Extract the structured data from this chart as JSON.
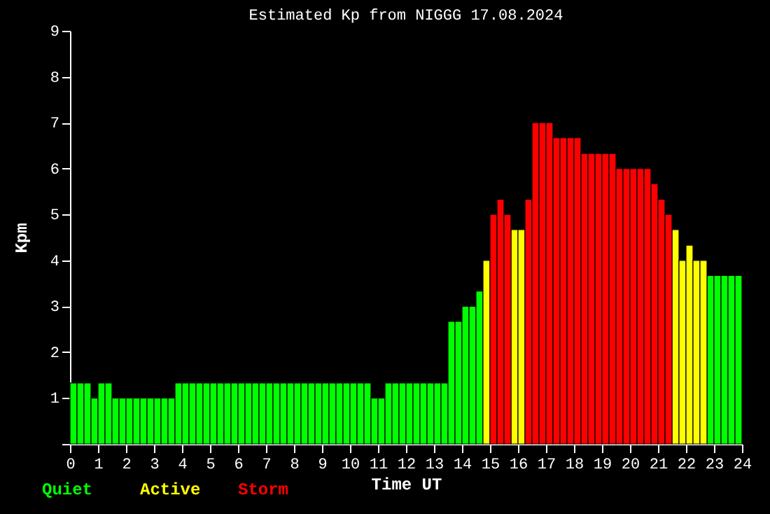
{
  "chart_data": {
    "type": "bar",
    "title": "Estimated Kp from NIGGG 17.08.2024",
    "xlabel": "Time UT",
    "ylabel": "Kpm",
    "x": [
      0.125,
      0.375,
      0.625,
      0.875,
      1.125,
      1.375,
      1.625,
      1.875,
      2.125,
      2.375,
      2.625,
      2.875,
      3.125,
      3.375,
      3.625,
      3.875,
      4.125,
      4.375,
      4.625,
      4.875,
      5.125,
      5.375,
      5.625,
      5.875,
      6.125,
      6.375,
      6.625,
      6.875,
      7.125,
      7.375,
      7.625,
      7.875,
      8.125,
      8.375,
      8.625,
      8.875,
      9.125,
      9.375,
      9.625,
      9.875,
      10.125,
      10.375,
      10.625,
      10.875,
      11.125,
      11.375,
      11.625,
      11.875,
      12.125,
      12.375,
      12.625,
      12.875,
      13.125,
      13.375,
      13.625,
      13.875,
      14.125,
      14.375,
      14.625,
      14.875,
      15.125,
      15.375,
      15.625,
      15.875,
      16.125,
      16.375,
      16.625,
      16.875,
      17.125,
      17.375,
      17.625,
      17.875,
      18.125,
      18.375,
      18.625,
      18.875,
      19.125,
      19.375,
      19.625,
      19.875,
      20.125,
      20.375,
      20.625,
      20.875,
      21.125,
      21.375,
      21.625,
      21.875,
      22.125,
      22.375,
      22.625,
      22.875,
      23.125,
      23.375,
      23.625,
      23.875
    ],
    "series": [
      {
        "name": "Quiet",
        "color": "#00ff00",
        "values": [
          1.33,
          1.33,
          1.33,
          1,
          1.33,
          1.33,
          1,
          1,
          1,
          1,
          1,
          1,
          1,
          1,
          1,
          1.33,
          1.33,
          1.33,
          1.33,
          1.33,
          1.33,
          1.33,
          1.33,
          1.33,
          1.33,
          1.33,
          1.33,
          1.33,
          1.33,
          1.33,
          1.33,
          1.33,
          1.33,
          1.33,
          1.33,
          1.33,
          1.33,
          1.33,
          1.33,
          1.33,
          1.33,
          1.33,
          1.33,
          1,
          1,
          1.33,
          1.33,
          1.33,
          1.33,
          1.33,
          1.33,
          1.33,
          1.33,
          1.33,
          2.67,
          2.67,
          3,
          3,
          3.33,
          null,
          null,
          null,
          null,
          null,
          null,
          null,
          null,
          null,
          null,
          null,
          null,
          null,
          null,
          null,
          null,
          null,
          null,
          null,
          null,
          null,
          null,
          null,
          null,
          null,
          null,
          null,
          null,
          null,
          null,
          null,
          null,
          3.67,
          3.67,
          3.67,
          3.67,
          3.67
        ]
      },
      {
        "name": "Active",
        "color": "#ffff00",
        "values": [
          null,
          null,
          null,
          null,
          null,
          null,
          null,
          null,
          null,
          null,
          null,
          null,
          null,
          null,
          null,
          null,
          null,
          null,
          null,
          null,
          null,
          null,
          null,
          null,
          null,
          null,
          null,
          null,
          null,
          null,
          null,
          null,
          null,
          null,
          null,
          null,
          null,
          null,
          null,
          null,
          null,
          null,
          null,
          null,
          null,
          null,
          null,
          null,
          null,
          null,
          null,
          null,
          null,
          null,
          null,
          null,
          null,
          null,
          null,
          4,
          null,
          null,
          null,
          4.67,
          4.67,
          null,
          null,
          null,
          null,
          null,
          null,
          null,
          null,
          null,
          null,
          null,
          null,
          null,
          null,
          null,
          null,
          null,
          null,
          null,
          null,
          null,
          4.67,
          4,
          4.33,
          4,
          4,
          null,
          null,
          null,
          null,
          null
        ]
      },
      {
        "name": "Storm",
        "color": "#ff0000",
        "values": [
          null,
          null,
          null,
          null,
          null,
          null,
          null,
          null,
          null,
          null,
          null,
          null,
          null,
          null,
          null,
          null,
          null,
          null,
          null,
          null,
          null,
          null,
          null,
          null,
          null,
          null,
          null,
          null,
          null,
          null,
          null,
          null,
          null,
          null,
          null,
          null,
          null,
          null,
          null,
          null,
          null,
          null,
          null,
          null,
          null,
          null,
          null,
          null,
          null,
          null,
          null,
          null,
          null,
          null,
          null,
          null,
          null,
          null,
          null,
          null,
          5,
          5.33,
          5,
          null,
          null,
          5.33,
          7,
          7,
          7,
          6.67,
          6.67,
          6.67,
          6.67,
          6.33,
          6.33,
          6.33,
          6.33,
          6.33,
          6,
          6,
          6,
          6,
          6,
          5.67,
          5.33,
          5,
          null,
          null,
          null,
          null,
          null,
          null,
          null,
          null,
          null,
          null
        ]
      }
    ],
    "xlim": [
      0,
      24
    ],
    "xticks": [
      0,
      1,
      2,
      3,
      4,
      5,
      6,
      7,
      8,
      9,
      10,
      11,
      12,
      13,
      14,
      15,
      16,
      17,
      18,
      19,
      20,
      21,
      22,
      23,
      24
    ],
    "ylim": [
      0,
      9
    ],
    "yticks": [
      {
        "value": 0,
        "label": null
      },
      1,
      2,
      3,
      4,
      5,
      6,
      7,
      8,
      9
    ],
    "grid": false,
    "legend": "bottom left"
  }
}
